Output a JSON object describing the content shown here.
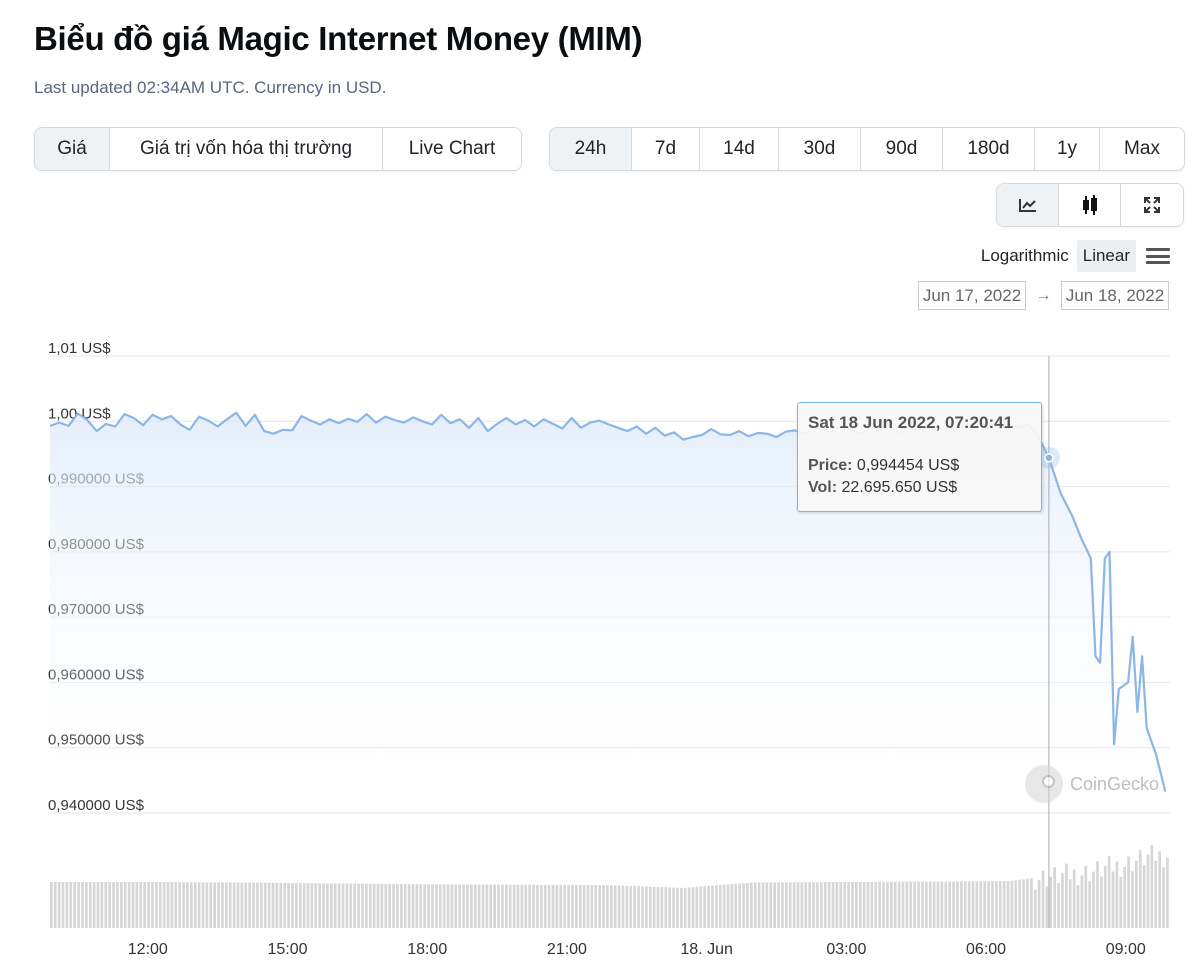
{
  "header": {
    "title": "Biểu đồ giá Magic Internet Money (MIM)",
    "subtitle": "Last updated 02:34AM UTC. Currency in USD."
  },
  "metric_tabs": [
    {
      "label": "Giá",
      "active": true
    },
    {
      "label": "Giá trị vốn hóa thị trường",
      "active": false
    },
    {
      "label": "Live Chart",
      "active": false
    }
  ],
  "range_tabs": [
    {
      "label": "24h",
      "active": true
    },
    {
      "label": "7d",
      "active": false
    },
    {
      "label": "14d",
      "active": false
    },
    {
      "label": "30d",
      "active": false
    },
    {
      "label": "90d",
      "active": false
    },
    {
      "label": "180d",
      "active": false
    },
    {
      "label": "1y",
      "active": false
    },
    {
      "label": "Max",
      "active": false
    }
  ],
  "tools": [
    {
      "icon": "line-chart-icon",
      "active": true
    },
    {
      "icon": "candlestick-icon",
      "active": false
    },
    {
      "icon": "fullscreen-icon",
      "active": false
    }
  ],
  "scale": {
    "logarithmic": "Logarithmic",
    "linear": "Linear",
    "active": "Linear"
  },
  "date_range": {
    "from": "Jun 17, 2022",
    "arrow": "→",
    "to": "Jun 18, 2022"
  },
  "tooltip": {
    "title": "Sat 18 Jun 2022, 07:20:41",
    "price_label": "Price:",
    "price_value": "0,994454 US$",
    "vol_label": "Vol:",
    "vol_value": "22.695.650 US$"
  },
  "watermark": "CoinGecko",
  "colors": {
    "line": "#8bb6e6",
    "area_top": "#dbe8f8",
    "volume": "#d6d6d6",
    "grid": "#e6e6e6",
    "crosshair": "#aaaaaa",
    "tooltip_border": "#7cb5ec"
  },
  "chart_data": {
    "type": "line",
    "title": "",
    "xlabel": "",
    "ylabel": "",
    "ylim": [
      0.94,
      1.01
    ],
    "y_ticks": [
      {
        "v": 1.01,
        "label": "1,01 US$"
      },
      {
        "v": 1.0,
        "label": "1,00 US$"
      },
      {
        "v": 0.99,
        "label": "0,990000 US$"
      },
      {
        "v": 0.98,
        "label": "0,980000 US$"
      },
      {
        "v": 0.97,
        "label": "0,970000 US$"
      },
      {
        "v": 0.96,
        "label": "0,960000 US$"
      },
      {
        "v": 0.95,
        "label": "0,950000 US$"
      },
      {
        "v": 0.94,
        "label": "0,940000 US$"
      }
    ],
    "x_ticks": [
      {
        "t": 12,
        "label": "12:00"
      },
      {
        "t": 15,
        "label": "15:00"
      },
      {
        "t": 18,
        "label": "18:00"
      },
      {
        "t": 21,
        "label": "21:00"
      },
      {
        "t": 24,
        "label": "18. Jun"
      },
      {
        "t": 27,
        "label": "03:00"
      },
      {
        "t": 30,
        "label": "06:00"
      },
      {
        "t": 33,
        "label": "09:00"
      }
    ],
    "x_range_hours": [
      9.9,
      33.95
    ],
    "crosshair_hour": 31.35,
    "price_series": {
      "name": "Price",
      "points": [
        [
          9.9,
          0.9993
        ],
        [
          10.1,
          0.9998
        ],
        [
          10.3,
          0.9993
        ],
        [
          10.5,
          1.0012
        ],
        [
          10.7,
          1.0002
        ],
        [
          10.9,
          0.9985
        ],
        [
          11.1,
          0.9996
        ],
        [
          11.3,
          0.9992
        ],
        [
          11.5,
          1.0011
        ],
        [
          11.7,
          1.0005
        ],
        [
          11.9,
          0.9994
        ],
        [
          12.1,
          1.001
        ],
        [
          12.3,
          1.0003
        ],
        [
          12.5,
          1.0008
        ],
        [
          12.7,
          0.9995
        ],
        [
          12.9,
          0.9987
        ],
        [
          13.1,
          1.0007
        ],
        [
          13.3,
          1.0001
        ],
        [
          13.5,
          0.9992
        ],
        [
          13.7,
          1.0003
        ],
        [
          13.9,
          1.0013
        ],
        [
          14.1,
          0.9993
        ],
        [
          14.3,
          1.001
        ],
        [
          14.5,
          0.9985
        ],
        [
          14.7,
          0.9981
        ],
        [
          14.9,
          0.9987
        ],
        [
          15.1,
          0.9986
        ],
        [
          15.3,
          1.0008
        ],
        [
          15.5,
          1.0001
        ],
        [
          15.7,
          0.9995
        ],
        [
          15.9,
          1.0003
        ],
        [
          16.1,
          0.9997
        ],
        [
          16.3,
          1.0004
        ],
        [
          16.5,
          0.9999
        ],
        [
          16.7,
          1.0011
        ],
        [
          16.9,
          0.9998
        ],
        [
          17.1,
          1.0007
        ],
        [
          17.3,
          1.0002
        ],
        [
          17.5,
          0.9998
        ],
        [
          17.7,
          1.0006
        ],
        [
          17.9,
          1.0
        ],
        [
          18.1,
          0.9995
        ],
        [
          18.3,
          1.001
        ],
        [
          18.5,
          0.9997
        ],
        [
          18.7,
          1.0003
        ],
        [
          18.9,
          0.999
        ],
        [
          19.1,
          1.0005
        ],
        [
          19.3,
          0.9985
        ],
        [
          19.5,
          0.9996
        ],
        [
          19.7,
          1.0005
        ],
        [
          19.9,
          0.9995
        ],
        [
          20.1,
          1.0002
        ],
        [
          20.3,
          0.9992
        ],
        [
          20.5,
          1.0003
        ],
        [
          20.7,
          0.9996
        ],
        [
          20.9,
          0.9989
        ],
        [
          21.1,
          1.0005
        ],
        [
          21.3,
          0.999
        ],
        [
          21.5,
          0.9998
        ],
        [
          21.7,
          1.0001
        ],
        [
          21.9,
          0.9995
        ],
        [
          22.1,
          0.999
        ],
        [
          22.3,
          0.9985
        ],
        [
          22.5,
          0.9992
        ],
        [
          22.7,
          0.9981
        ],
        [
          22.9,
          0.999
        ],
        [
          23.1,
          0.9978
        ],
        [
          23.3,
          0.9983
        ],
        [
          23.5,
          0.9972
        ],
        [
          23.7,
          0.9976
        ],
        [
          23.9,
          0.9979
        ],
        [
          24.1,
          0.9988
        ],
        [
          24.3,
          0.998
        ],
        [
          24.5,
          0.9979
        ],
        [
          24.7,
          0.9985
        ],
        [
          24.9,
          0.9977
        ],
        [
          25.1,
          0.9982
        ],
        [
          25.3,
          0.9981
        ],
        [
          25.5,
          0.9976
        ],
        [
          25.7,
          0.9984
        ],
        [
          25.9,
          0.9986
        ],
        [
          26.1,
          0.998
        ],
        [
          26.3,
          0.9991
        ],
        [
          26.5,
          0.9986
        ],
        [
          26.7,
          0.9984
        ],
        [
          26.9,
          0.9992
        ],
        [
          27.1,
          0.9988
        ],
        [
          27.3,
          0.9981
        ],
        [
          27.5,
          0.9989
        ],
        [
          27.7,
          0.9987
        ],
        [
          27.9,
          0.9993
        ],
        [
          28.1,
          0.9982
        ],
        [
          28.3,
          0.999
        ],
        [
          28.5,
          0.9987
        ],
        [
          28.7,
          0.9993
        ],
        [
          28.9,
          0.9986
        ],
        [
          29.1,
          0.9991
        ],
        [
          29.3,
          0.9988
        ],
        [
          29.5,
          0.9994
        ],
        [
          29.7,
          0.999
        ],
        [
          29.9,
          0.9993
        ],
        [
          30.1,
          0.9996
        ],
        [
          30.3,
          0.9989
        ],
        [
          30.5,
          0.9994
        ],
        [
          30.7,
          0.9991
        ],
        [
          30.9,
          0.9995
        ],
        [
          31.1,
          0.998
        ],
        [
          31.35,
          0.9944
        ],
        [
          31.6,
          0.989
        ],
        [
          31.85,
          0.9855
        ],
        [
          32.05,
          0.982
        ],
        [
          32.25,
          0.979
        ],
        [
          32.35,
          0.964
        ],
        [
          32.45,
          0.963
        ],
        [
          32.55,
          0.979
        ],
        [
          32.65,
          0.98
        ],
        [
          32.75,
          0.9505
        ],
        [
          32.85,
          0.959
        ],
        [
          33.05,
          0.96
        ],
        [
          33.15,
          0.967
        ],
        [
          33.25,
          0.9555
        ],
        [
          33.35,
          0.964
        ],
        [
          33.45,
          0.953
        ],
        [
          33.65,
          0.949
        ],
        [
          33.85,
          0.9433
        ]
      ]
    },
    "volume_series": {
      "name": "Vol",
      "segments": [
        [
          9.9,
          1.0
        ],
        [
          12.0,
          1.0
        ],
        [
          14.0,
          0.99
        ],
        [
          16.0,
          0.97
        ],
        [
          18.0,
          0.95
        ],
        [
          20.0,
          0.94
        ],
        [
          22.0,
          0.93
        ],
        [
          23.5,
          0.87
        ],
        [
          25.0,
          0.99
        ],
        [
          27.0,
          1.0
        ],
        [
          29.0,
          1.01
        ],
        [
          30.5,
          1.02
        ],
        [
          31.0,
          1.08
        ],
        [
          31.5,
          1.12
        ],
        [
          32.3,
          1.22
        ],
        [
          32.6,
          1.3
        ],
        [
          33.0,
          1.38
        ],
        [
          33.5,
          1.55
        ],
        [
          33.95,
          1.58
        ]
      ],
      "crosshair_value_text": "22.695.650 US$"
    }
  }
}
